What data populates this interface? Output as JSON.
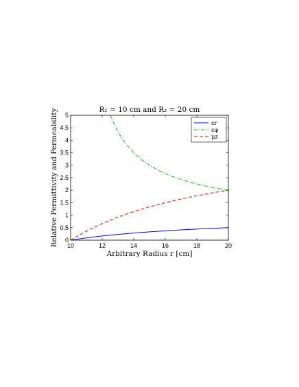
{
  "chart_data": {
    "type": "line",
    "title": "R₁ = 10 cm and R₂ = 20 cm",
    "xlabel": "Arbitrary Radius r [cm]",
    "ylabel": "Relative Permittivity and Permeability",
    "xlim": [
      10,
      20
    ],
    "ylim": [
      0,
      5
    ],
    "x_ticks": [
      "10",
      "12",
      "14",
      "16",
      "18",
      "20"
    ],
    "y_ticks": [
      "0",
      "0.5",
      "1",
      "1.5",
      "2",
      "2.5",
      "3",
      "3.5",
      "4",
      "4.5",
      "5"
    ],
    "grid": false,
    "legend_position": "top-right",
    "x": [
      10,
      10.5,
      11,
      11.5,
      12,
      12.5,
      13,
      13.5,
      14,
      14.5,
      15,
      15.5,
      16,
      16.5,
      17,
      17.5,
      18,
      18.5,
      19,
      19.5,
      20
    ],
    "series": [
      {
        "name": "εr",
        "color": "#0000ff",
        "dash": "solid",
        "values": [
          0,
          0.048,
          0.091,
          0.13,
          0.167,
          0.2,
          0.231,
          0.259,
          0.286,
          0.31,
          0.333,
          0.355,
          0.375,
          0.394,
          0.412,
          0.429,
          0.444,
          0.459,
          0.474,
          0.487,
          0.5
        ]
      },
      {
        "name": "εφ",
        "color": "#00bb00",
        "dash": "dashdot",
        "values": [
          null,
          null,
          null,
          null,
          null,
          5.0,
          4.333,
          3.857,
          3.5,
          3.222,
          3.0,
          2.818,
          2.667,
          2.538,
          2.429,
          2.333,
          2.25,
          2.176,
          2.111,
          2.053,
          2.0
        ]
      },
      {
        "name": "μz",
        "color": "#ff0000",
        "dash": "dashed",
        "values": [
          0,
          0.19,
          0.364,
          0.522,
          0.667,
          0.8,
          0.923,
          1.037,
          1.143,
          1.241,
          1.333,
          1.419,
          1.5,
          1.576,
          1.647,
          1.714,
          1.778,
          1.838,
          1.895,
          1.949,
          2.0
        ]
      }
    ]
  }
}
